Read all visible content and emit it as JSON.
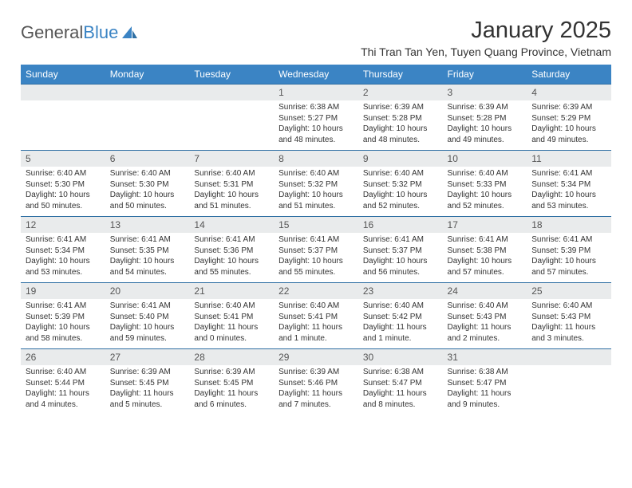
{
  "brand": {
    "part1": "General",
    "part2": "Blue"
  },
  "title": "January 2025",
  "location": "Thi Tran Tan Yen, Tuyen Quang Province, Vietnam",
  "colors": {
    "header_bg": "#3b84c4",
    "header_fg": "#ffffff",
    "daynum_bg": "#e9ebec",
    "rule": "#2f6fa3",
    "text": "#333333"
  },
  "day_names": [
    "Sunday",
    "Monday",
    "Tuesday",
    "Wednesday",
    "Thursday",
    "Friday",
    "Saturday"
  ],
  "weeks": [
    [
      null,
      null,
      null,
      {
        "n": "1",
        "sr": "6:38 AM",
        "ss": "5:27 PM",
        "dl": "10 hours and 48 minutes."
      },
      {
        "n": "2",
        "sr": "6:39 AM",
        "ss": "5:28 PM",
        "dl": "10 hours and 48 minutes."
      },
      {
        "n": "3",
        "sr": "6:39 AM",
        "ss": "5:28 PM",
        "dl": "10 hours and 49 minutes."
      },
      {
        "n": "4",
        "sr": "6:39 AM",
        "ss": "5:29 PM",
        "dl": "10 hours and 49 minutes."
      }
    ],
    [
      {
        "n": "5",
        "sr": "6:40 AM",
        "ss": "5:30 PM",
        "dl": "10 hours and 50 minutes."
      },
      {
        "n": "6",
        "sr": "6:40 AM",
        "ss": "5:30 PM",
        "dl": "10 hours and 50 minutes."
      },
      {
        "n": "7",
        "sr": "6:40 AM",
        "ss": "5:31 PM",
        "dl": "10 hours and 51 minutes."
      },
      {
        "n": "8",
        "sr": "6:40 AM",
        "ss": "5:32 PM",
        "dl": "10 hours and 51 minutes."
      },
      {
        "n": "9",
        "sr": "6:40 AM",
        "ss": "5:32 PM",
        "dl": "10 hours and 52 minutes."
      },
      {
        "n": "10",
        "sr": "6:40 AM",
        "ss": "5:33 PM",
        "dl": "10 hours and 52 minutes."
      },
      {
        "n": "11",
        "sr": "6:41 AM",
        "ss": "5:34 PM",
        "dl": "10 hours and 53 minutes."
      }
    ],
    [
      {
        "n": "12",
        "sr": "6:41 AM",
        "ss": "5:34 PM",
        "dl": "10 hours and 53 minutes."
      },
      {
        "n": "13",
        "sr": "6:41 AM",
        "ss": "5:35 PM",
        "dl": "10 hours and 54 minutes."
      },
      {
        "n": "14",
        "sr": "6:41 AM",
        "ss": "5:36 PM",
        "dl": "10 hours and 55 minutes."
      },
      {
        "n": "15",
        "sr": "6:41 AM",
        "ss": "5:37 PM",
        "dl": "10 hours and 55 minutes."
      },
      {
        "n": "16",
        "sr": "6:41 AM",
        "ss": "5:37 PM",
        "dl": "10 hours and 56 minutes."
      },
      {
        "n": "17",
        "sr": "6:41 AM",
        "ss": "5:38 PM",
        "dl": "10 hours and 57 minutes."
      },
      {
        "n": "18",
        "sr": "6:41 AM",
        "ss": "5:39 PM",
        "dl": "10 hours and 57 minutes."
      }
    ],
    [
      {
        "n": "19",
        "sr": "6:41 AM",
        "ss": "5:39 PM",
        "dl": "10 hours and 58 minutes."
      },
      {
        "n": "20",
        "sr": "6:41 AM",
        "ss": "5:40 PM",
        "dl": "10 hours and 59 minutes."
      },
      {
        "n": "21",
        "sr": "6:40 AM",
        "ss": "5:41 PM",
        "dl": "11 hours and 0 minutes."
      },
      {
        "n": "22",
        "sr": "6:40 AM",
        "ss": "5:41 PM",
        "dl": "11 hours and 1 minute."
      },
      {
        "n": "23",
        "sr": "6:40 AM",
        "ss": "5:42 PM",
        "dl": "11 hours and 1 minute."
      },
      {
        "n": "24",
        "sr": "6:40 AM",
        "ss": "5:43 PM",
        "dl": "11 hours and 2 minutes."
      },
      {
        "n": "25",
        "sr": "6:40 AM",
        "ss": "5:43 PM",
        "dl": "11 hours and 3 minutes."
      }
    ],
    [
      {
        "n": "26",
        "sr": "6:40 AM",
        "ss": "5:44 PM",
        "dl": "11 hours and 4 minutes."
      },
      {
        "n": "27",
        "sr": "6:39 AM",
        "ss": "5:45 PM",
        "dl": "11 hours and 5 minutes."
      },
      {
        "n": "28",
        "sr": "6:39 AM",
        "ss": "5:45 PM",
        "dl": "11 hours and 6 minutes."
      },
      {
        "n": "29",
        "sr": "6:39 AM",
        "ss": "5:46 PM",
        "dl": "11 hours and 7 minutes."
      },
      {
        "n": "30",
        "sr": "6:38 AM",
        "ss": "5:47 PM",
        "dl": "11 hours and 8 minutes."
      },
      {
        "n": "31",
        "sr": "6:38 AM",
        "ss": "5:47 PM",
        "dl": "11 hours and 9 minutes."
      },
      null
    ]
  ],
  "labels": {
    "sunrise": "Sunrise:",
    "sunset": "Sunset:",
    "daylight": "Daylight:"
  }
}
